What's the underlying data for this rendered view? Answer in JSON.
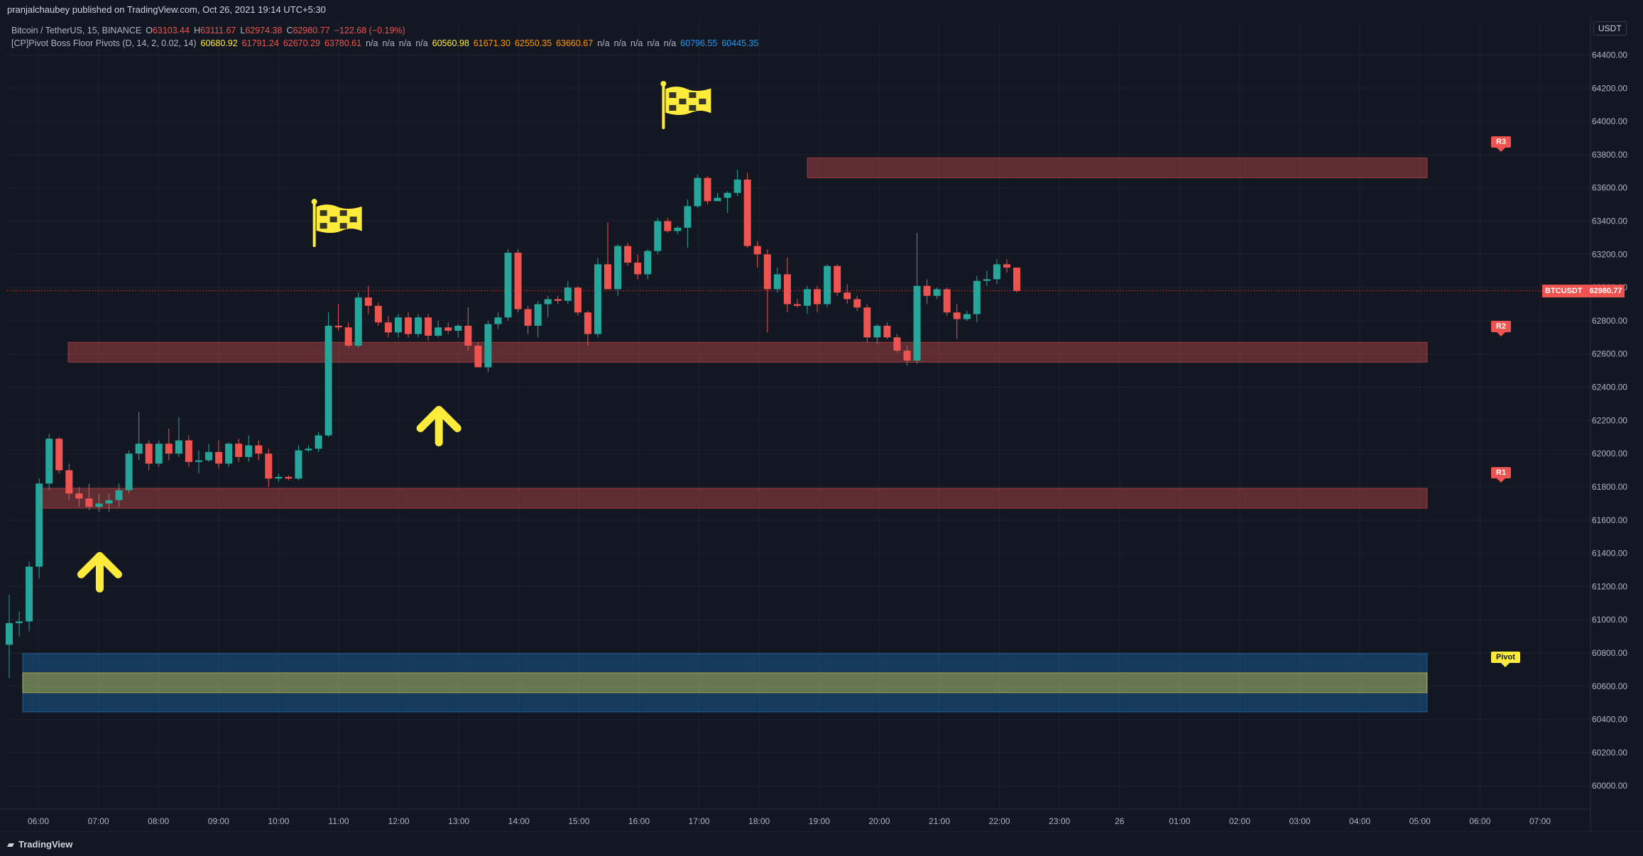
{
  "header": {
    "publisher": "pranjalchaubey published on TradingView.com, Oct 26, 2021 19:14 UTC+5:30",
    "symbol": "Bitcoin / TetherUS, 15, BINANCE",
    "ohlc": {
      "o_label": "O",
      "o": "63103.44",
      "h_label": "H",
      "h": "63111.67",
      "l_label": "L",
      "l": "62974.38",
      "c_label": "C",
      "c": "62980.77",
      "change": "−122.68 (−0.19%)"
    },
    "indicator_name": "[CP]Pivot Boss Floor Pivots (D, 14, 2, 0.02, 14)",
    "indicator_values": [
      {
        "v": "60680.92",
        "c": "#ffeb3b"
      },
      {
        "v": "61791.24",
        "c": "#ef5350"
      },
      {
        "v": "62670.29",
        "c": "#ef5350"
      },
      {
        "v": "63780.61",
        "c": "#ef5350"
      },
      {
        "v": "n/a",
        "c": "#b2b5be"
      },
      {
        "v": "n/a",
        "c": "#b2b5be"
      },
      {
        "v": "n/a",
        "c": "#b2b5be"
      },
      {
        "v": "n/a",
        "c": "#b2b5be"
      },
      {
        "v": "60560.98",
        "c": "#ffeb3b"
      },
      {
        "v": "61671.30",
        "c": "#ff9800"
      },
      {
        "v": "62550.35",
        "c": "#ff9800"
      },
      {
        "v": "63660.67",
        "c": "#ff9800"
      },
      {
        "v": "n/a",
        "c": "#b2b5be"
      },
      {
        "v": "n/a",
        "c": "#b2b5be"
      },
      {
        "v": "n/a",
        "c": "#b2b5be"
      },
      {
        "v": "n/a",
        "c": "#b2b5be"
      },
      {
        "v": "n/a",
        "c": "#b2b5be"
      },
      {
        "v": "60796.55",
        "c": "#2196f3"
      },
      {
        "v": "60445.35",
        "c": "#2196f3"
      }
    ],
    "currency": "USDT"
  },
  "footer": {
    "logo": "TradingView"
  },
  "chart_data": {
    "type": "candlestick",
    "symbol": "BTCUSDT",
    "interval": "15",
    "ylim": [
      59860,
      64560
    ],
    "y_ticks": [
      "60000.00",
      "60200.00",
      "60400.00",
      "60600.00",
      "60800.00",
      "61000.00",
      "61200.00",
      "61400.00",
      "61600.00",
      "61800.00",
      "62000.00",
      "62200.00",
      "62400.00",
      "62600.00",
      "62800.00",
      "63000.00",
      "63200.00",
      "63400.00",
      "63600.00",
      "63800.00",
      "64000.00",
      "64200.00",
      "64400.00"
    ],
    "x_ticks": [
      "06:00",
      "07:00",
      "08:00",
      "09:00",
      "10:00",
      "11:00",
      "12:00",
      "13:00",
      "14:00",
      "15:00",
      "16:00",
      "17:00",
      "18:00",
      "19:00",
      "20:00",
      "21:00",
      "22:00",
      "23:00",
      "26",
      "01:00",
      "02:00",
      "03:00",
      "04:00",
      "05:00",
      "06:00",
      "07:00"
    ],
    "last_price": {
      "label": "BTCUSDT",
      "value": "62980.77"
    },
    "candles": [
      [
        60850,
        61150,
        60650,
        60980
      ],
      [
        60980,
        61050,
        60900,
        60990
      ],
      [
        60990,
        61350,
        60930,
        61320
      ],
      [
        61320,
        61850,
        61250,
        61820
      ],
      [
        61820,
        62120,
        61780,
        62090
      ],
      [
        62090,
        62100,
        61880,
        61900
      ],
      [
        61900,
        61940,
        61720,
        61760
      ],
      [
        61760,
        61800,
        61680,
        61730
      ],
      [
        61730,
        61820,
        61660,
        61680
      ],
      [
        61680,
        61760,
        61650,
        61700
      ],
      [
        61700,
        61760,
        61650,
        61720
      ],
      [
        61720,
        61820,
        61680,
        61780
      ],
      [
        61780,
        62020,
        61760,
        62000
      ],
      [
        62000,
        62250,
        61960,
        62060
      ],
      [
        62060,
        62080,
        61900,
        61940
      ],
      [
        61940,
        62080,
        61920,
        62060
      ],
      [
        62060,
        62150,
        61960,
        62000
      ],
      [
        62000,
        62220,
        61980,
        62080
      ],
      [
        62080,
        62110,
        61920,
        61950
      ],
      [
        61950,
        62020,
        61880,
        61960
      ],
      [
        61960,
        62060,
        61950,
        62010
      ],
      [
        62010,
        62080,
        61910,
        61940
      ],
      [
        61940,
        62070,
        61920,
        62060
      ],
      [
        62060,
        62090,
        61950,
        61980
      ],
      [
        61980,
        62110,
        61950,
        62050
      ],
      [
        62050,
        62080,
        61960,
        62000
      ],
      [
        62000,
        62030,
        61800,
        61850
      ],
      [
        61850,
        61880,
        61830,
        61860
      ],
      [
        61860,
        61870,
        61840,
        61850
      ],
      [
        61850,
        62050,
        61840,
        62020
      ],
      [
        62020,
        62050,
        62010,
        62030
      ],
      [
        62030,
        62130,
        62010,
        62110
      ],
      [
        62110,
        62850,
        62100,
        62770
      ],
      [
        62770,
        62900,
        62740,
        62760
      ],
      [
        62760,
        62790,
        62640,
        62650
      ],
      [
        62650,
        62970,
        62640,
        62940
      ],
      [
        62940,
        63010,
        62840,
        62890
      ],
      [
        62890,
        62910,
        62770,
        62790
      ],
      [
        62790,
        62830,
        62700,
        62730
      ],
      [
        62730,
        62840,
        62700,
        62820
      ],
      [
        62820,
        62850,
        62700,
        62720
      ],
      [
        62720,
        62840,
        62700,
        62820
      ],
      [
        62820,
        62840,
        62680,
        62710
      ],
      [
        62710,
        62800,
        62700,
        62760
      ],
      [
        62760,
        62790,
        62720,
        62740
      ],
      [
        62740,
        62780,
        62700,
        62770
      ],
      [
        62770,
        62880,
        62620,
        62650
      ],
      [
        62650,
        62670,
        62540,
        62520
      ],
      [
        62520,
        62800,
        62490,
        62780
      ],
      [
        62780,
        62850,
        62750,
        62820
      ],
      [
        62820,
        63230,
        62800,
        63210
      ],
      [
        63210,
        63230,
        62850,
        62870
      ],
      [
        62870,
        62890,
        62720,
        62770
      ],
      [
        62770,
        62920,
        62700,
        62900
      ],
      [
        62900,
        62950,
        62820,
        62930
      ],
      [
        62930,
        62950,
        62900,
        62920
      ],
      [
        62920,
        63040,
        62900,
        63000
      ],
      [
        63000,
        63010,
        62830,
        62850
      ],
      [
        62850,
        62860,
        62650,
        62720
      ],
      [
        62720,
        63180,
        62700,
        63140
      ],
      [
        63140,
        63390,
        63000,
        62990
      ],
      [
        62990,
        63260,
        62950,
        63250
      ],
      [
        63250,
        63270,
        63130,
        63150
      ],
      [
        63150,
        63200,
        63050,
        63080
      ],
      [
        63080,
        63230,
        63050,
        63220
      ],
      [
        63220,
        63420,
        63200,
        63400
      ],
      [
        63400,
        63420,
        63330,
        63340
      ],
      [
        63340,
        63370,
        63320,
        63360
      ],
      [
        63360,
        63530,
        63240,
        63490
      ],
      [
        63490,
        63680,
        63480,
        63660
      ],
      [
        63660,
        63670,
        63500,
        63520
      ],
      [
        63520,
        63570,
        63520,
        63540
      ],
      [
        63540,
        63580,
        63450,
        63570
      ],
      [
        63570,
        63710,
        63550,
        63650
      ],
      [
        63650,
        63690,
        63240,
        63250
      ],
      [
        63250,
        63280,
        63120,
        63200
      ],
      [
        63200,
        63230,
        62730,
        62990
      ],
      [
        62990,
        63120,
        62970,
        63080
      ],
      [
        63080,
        63180,
        62850,
        62900
      ],
      [
        62900,
        62930,
        62880,
        62890
      ],
      [
        62890,
        63010,
        62840,
        62990
      ],
      [
        62990,
        63010,
        62850,
        62900
      ],
      [
        62900,
        63140,
        62880,
        63130
      ],
      [
        63130,
        63140,
        62950,
        62970
      ],
      [
        62970,
        63020,
        62900,
        62930
      ],
      [
        62930,
        62950,
        62860,
        62880
      ],
      [
        62880,
        62900,
        62670,
        62700
      ],
      [
        62700,
        62780,
        62660,
        62770
      ],
      [
        62770,
        62790,
        62690,
        62700
      ],
      [
        62700,
        62720,
        62610,
        62620
      ],
      [
        62620,
        62650,
        62530,
        62560
      ],
      [
        62560,
        63330,
        62540,
        63010
      ],
      [
        63010,
        63050,
        62900,
        62950
      ],
      [
        62950,
        63000,
        62930,
        62990
      ],
      [
        62990,
        63000,
        62830,
        62850
      ],
      [
        62850,
        62900,
        62690,
        62810
      ],
      [
        62810,
        62860,
        62800,
        62840
      ],
      [
        62840,
        63070,
        62790,
        63040
      ],
      [
        63040,
        63100,
        63010,
        63050
      ],
      [
        63050,
        63170,
        63020,
        63140
      ],
      [
        63140,
        63170,
        63090,
        63120
      ],
      [
        63120,
        63120,
        62970,
        62980
      ]
    ],
    "zones": [
      {
        "name": "R3",
        "low": 63660.67,
        "high": 63780.61,
        "color": "#ef5350"
      },
      {
        "name": "R2",
        "low": 62550.35,
        "high": 62670.29,
        "color": "#ef5350"
      },
      {
        "name": "R1",
        "low": 61671.3,
        "high": 61791.24,
        "color": "#ef5350"
      },
      {
        "name": "Pivot-range",
        "low": 60445.35,
        "high": 60796.55,
        "color": "#2196f3"
      },
      {
        "name": "Pivot-core",
        "low": 60560.98,
        "high": 60680.92,
        "color": "#ffeb3b"
      }
    ],
    "level_labels": [
      {
        "text": "R3",
        "price": 63780.61,
        "color": "#ef5350",
        "text_color": "#ffffff"
      },
      {
        "text": "R2",
        "price": 62670.29,
        "color": "#ef5350",
        "text_color": "#ffffff"
      },
      {
        "text": "R1",
        "price": 61791.24,
        "color": "#ef5350",
        "text_color": "#ffffff"
      },
      {
        "text": "Pivot",
        "price": 60680.92,
        "color": "#ffeb3b",
        "text_color": "#131722"
      }
    ],
    "annotations": [
      {
        "kind": "arrow-up",
        "candle": 9,
        "price": 61350
      },
      {
        "kind": "arrow-up",
        "candle": 43,
        "price": 62230
      },
      {
        "kind": "flag",
        "candle": 33,
        "price": 63380
      },
      {
        "kind": "flag",
        "candle": 68,
        "price": 64090
      }
    ],
    "colors": {
      "up": "#26a69a",
      "down": "#ef5350",
      "background": "#131722",
      "grid": "#1e222d",
      "text": "#b2b5be",
      "annotation": "#ffeb3b"
    }
  }
}
